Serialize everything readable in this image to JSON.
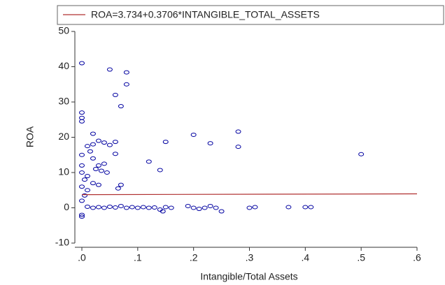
{
  "chart_data": {
    "type": "scatter",
    "legend": "top",
    "xlabel": "Intangible/Total Assets",
    "ylabel": "ROA",
    "xlim": [
      0,
      0.6
    ],
    "xticks": [
      {
        "value": 0,
        "label": ".0"
      },
      {
        "value": 0.1,
        "label": ".1"
      },
      {
        "value": 0.2,
        "label": ".2"
      },
      {
        "value": 0.3,
        "label": ".3"
      },
      {
        "value": 0.4,
        "label": ".4"
      },
      {
        "value": 0.5,
        "label": ".5"
      },
      {
        "value": 0.6,
        "label": ".6"
      }
    ],
    "ylim": [
      -10,
      50
    ],
    "yticks": [
      -10,
      0,
      10,
      20,
      30,
      40,
      50
    ],
    "series": [
      {
        "kind": "points",
        "color": "#0000a0",
        "x": [
          0,
          0.05,
          0.08,
          0.08,
          0.06,
          0.07,
          0,
          0,
          0,
          0.2,
          0.28,
          0.23,
          0.28,
          0.15,
          0.5,
          0.12,
          0.14,
          0.07,
          0.065,
          0.02,
          0.01,
          0.015,
          0.02,
          0.03,
          0.04,
          0.05,
          0.06,
          0.06,
          0.02,
          0.03,
          0.025,
          0.035,
          0.04,
          0.045,
          0.01,
          0.005,
          0.02,
          0.03,
          0.01,
          0.005,
          0,
          0,
          0,
          0,
          0,
          0,
          0,
          0.01,
          0.02,
          0.03,
          0.04,
          0.05,
          0.06,
          0.07,
          0.08,
          0.09,
          0.1,
          0.11,
          0.12,
          0.13,
          0.14,
          0.15,
          0.16,
          0.19,
          0.2,
          0.21,
          0.22,
          0.23,
          0.24,
          0.25,
          0.3,
          0.31,
          0.37,
          0.4,
          0.41,
          0.145
        ],
        "values": [
          41,
          39.2,
          38.4,
          35,
          32,
          28.8,
          27,
          25.5,
          24.5,
          20.7,
          21.6,
          18.3,
          17.3,
          18.7,
          15.2,
          13.1,
          10.7,
          6.5,
          5.5,
          21,
          17.5,
          16,
          18,
          19,
          18.5,
          17.8,
          18.7,
          15.3,
          14,
          12,
          11,
          10.5,
          12.5,
          10,
          9,
          8,
          7,
          6.5,
          5,
          3.5,
          2,
          -2.5,
          -2,
          15,
          12,
          10,
          6,
          0.3,
          0,
          0.2,
          0,
          0.3,
          0.1,
          0.5,
          0,
          0.2,
          0,
          0.2,
          0,
          0.1,
          -0.5,
          0.2,
          0,
          0.5,
          0,
          -0.3,
          0,
          0.5,
          0,
          -1,
          0,
          0.2,
          0.2,
          0.2,
          0.2,
          -1
        ]
      },
      {
        "kind": "line",
        "name": "ROA=3.734+0.3706*INTANGIBLE_TOTAL_ASSETS",
        "color": "#b03030",
        "x": [
          0,
          0.6
        ],
        "values": [
          3.734,
          3.956
        ]
      }
    ]
  }
}
